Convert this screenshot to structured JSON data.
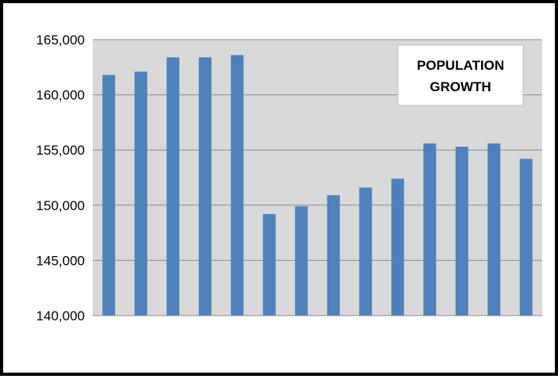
{
  "chart_data": {
    "type": "bar",
    "title_lines": [
      "POPULATION",
      "GROWTH"
    ],
    "xlabel": "",
    "ylabel": "",
    "ylim": [
      140000,
      165000
    ],
    "yticks": [
      140000,
      145000,
      150000,
      155000,
      160000,
      165000
    ],
    "ytick_labels": [
      "140,000",
      "145,000",
      "150,000",
      "155,000",
      "160,000",
      "165,000"
    ],
    "values": [
      161800,
      162100,
      163400,
      163400,
      163600,
      149200,
      149900,
      150900,
      151600,
      152400,
      155600,
      155300,
      155600,
      154200
    ],
    "grid": true,
    "legend": "none",
    "colors": {
      "bar": "#4f81bd",
      "plot_background": "#d9d9d9",
      "gridline": "#8c8c8c",
      "title_box": "#ffffff",
      "frame": "#000000"
    }
  }
}
